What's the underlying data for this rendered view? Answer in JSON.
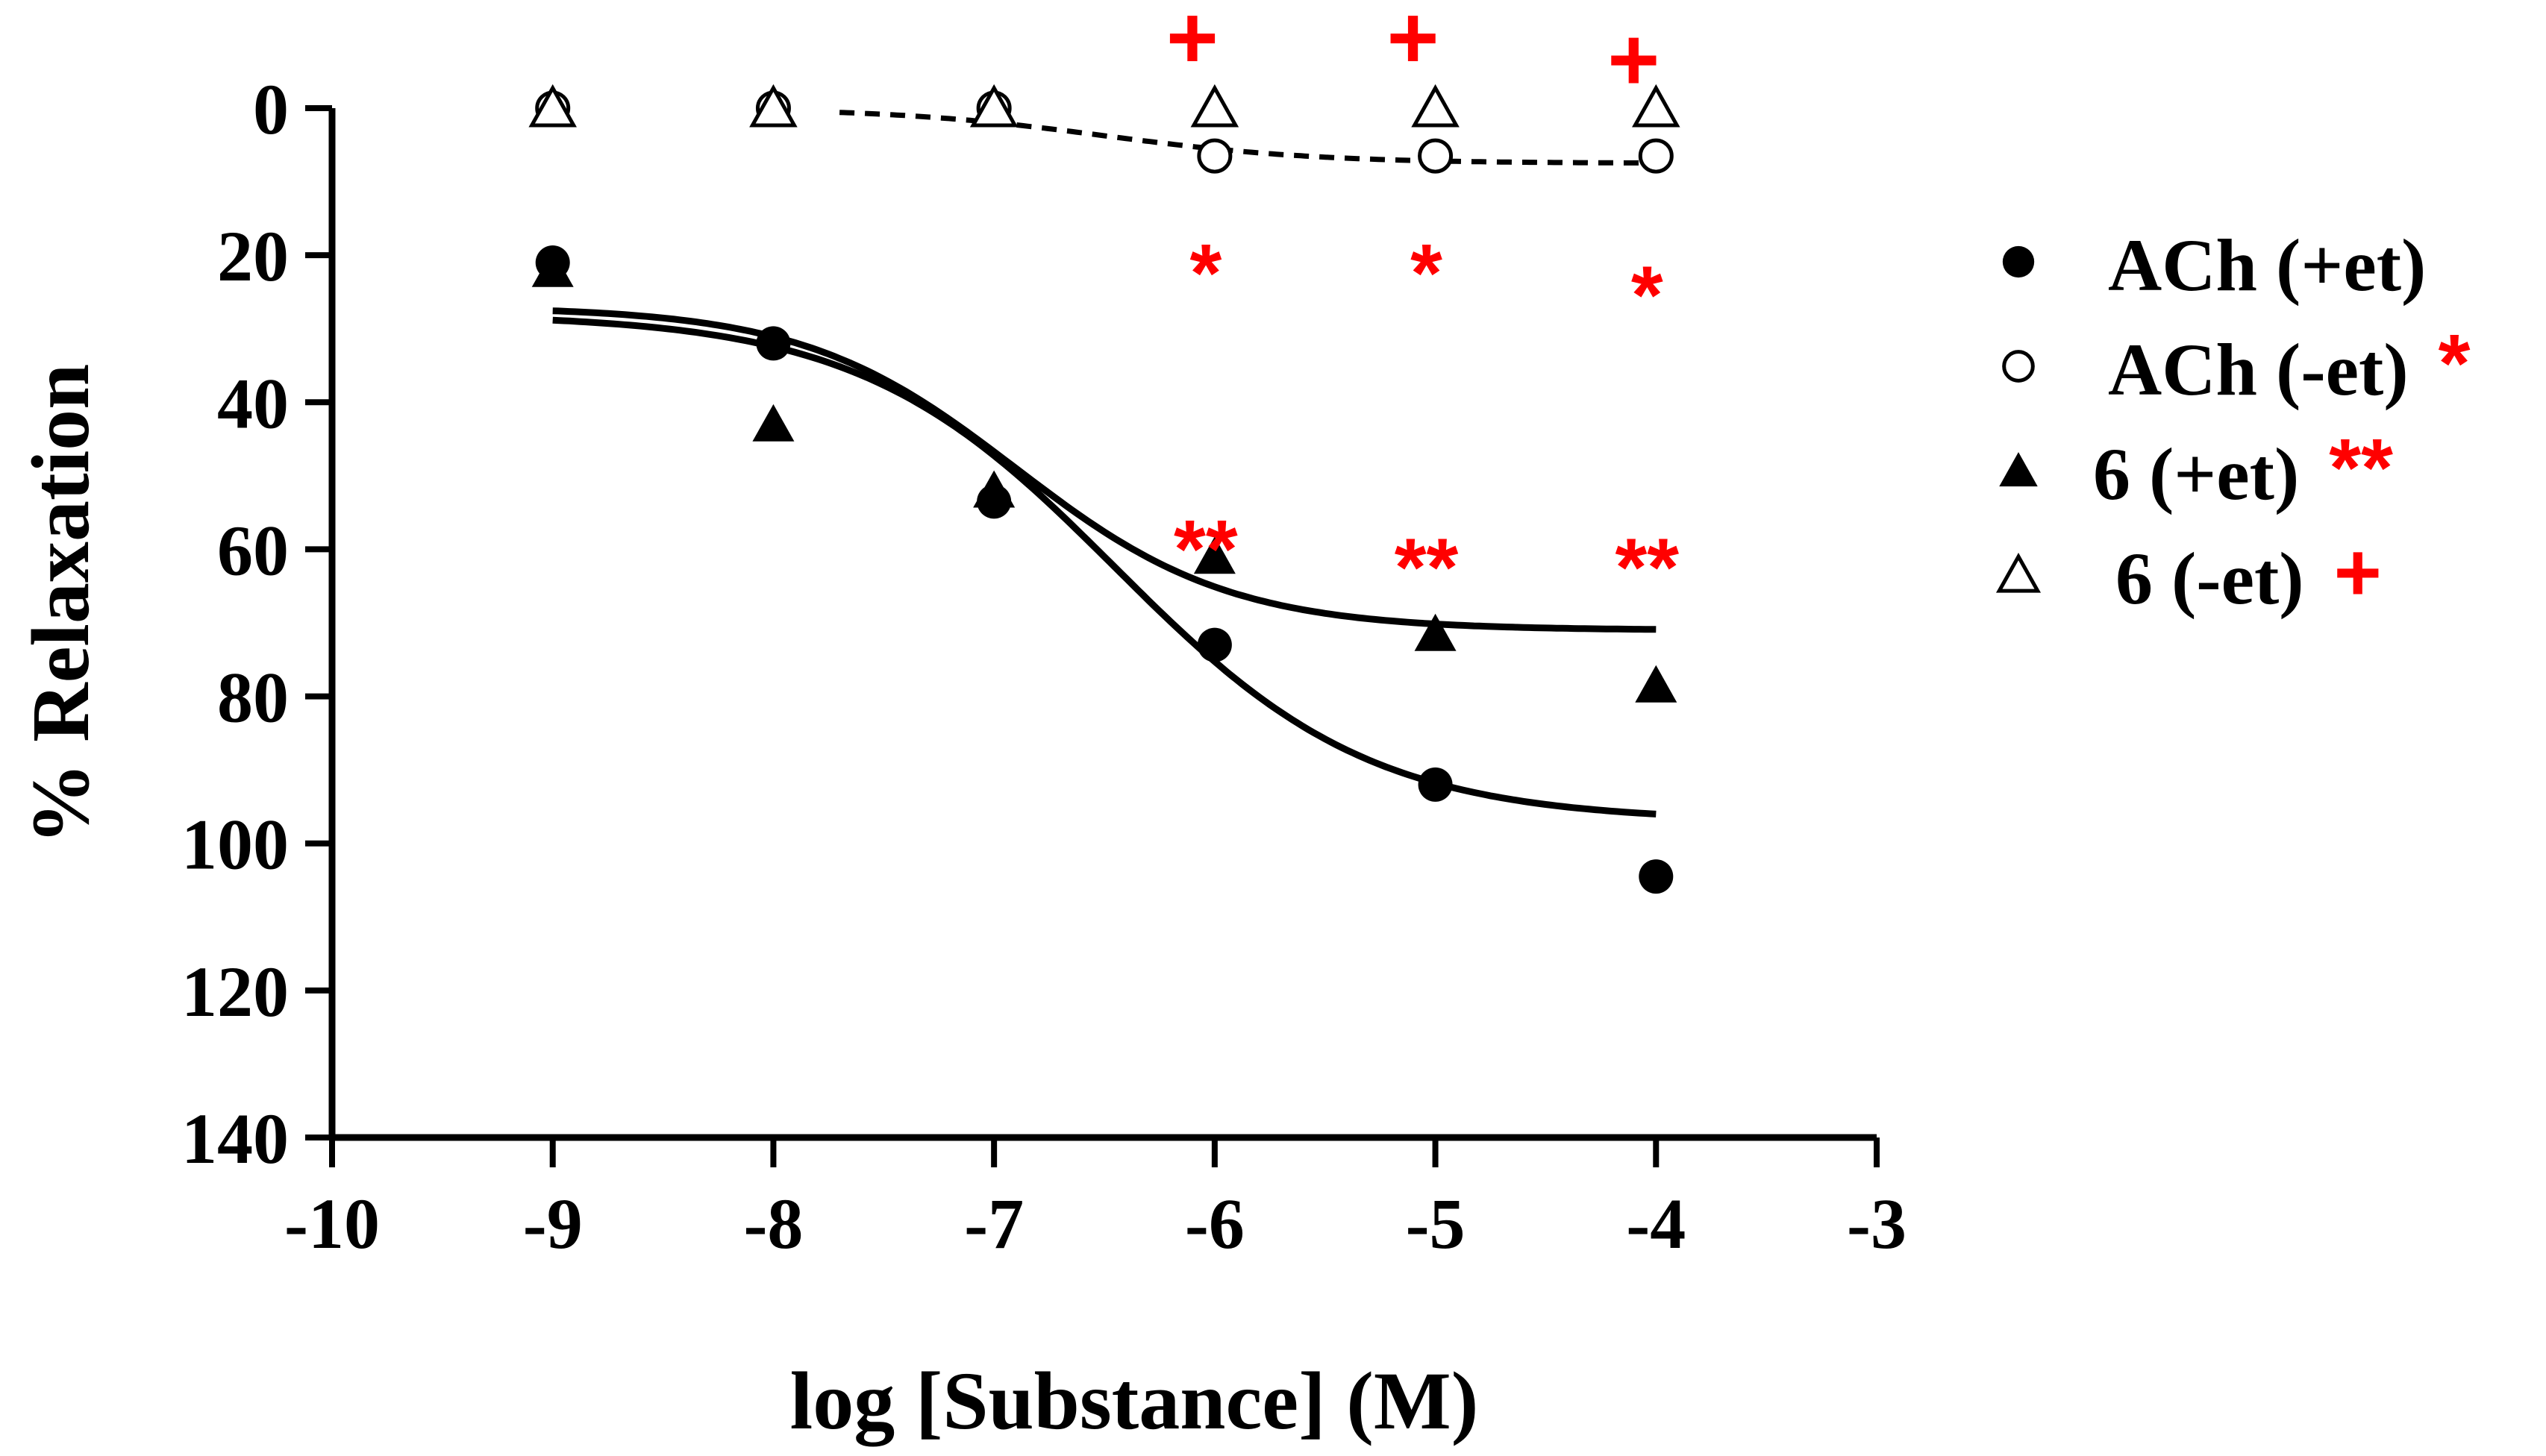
{
  "chart_data": {
    "type": "scatter",
    "xlabel": "log [Substance] (M)",
    "ylabel": "% Relaxation",
    "xlim": [
      -10,
      -3
    ],
    "ylim": [
      140,
      0
    ],
    "y_inverted": true,
    "xticks": [
      "-10",
      "-9",
      "-8",
      "-7",
      "-6",
      "-5",
      "-4",
      "-3"
    ],
    "yticks": [
      "0",
      "20",
      "40",
      "60",
      "80",
      "100",
      "120",
      "140"
    ],
    "grid": false,
    "legend_position": "right",
    "series": [
      {
        "name": "ACh (+et)",
        "marker": "filled-circle",
        "x": [
          -9,
          -8,
          -7,
          -6,
          -5,
          -4
        ],
        "y": [
          21,
          32,
          53.5,
          73,
          92,
          104.5
        ],
        "fit": "solid",
        "fit_params": {
          "bottom": 28,
          "top": 97,
          "logEC50": -6.45,
          "hill": 0.75
        }
      },
      {
        "name": "ACh (-et)",
        "marker": "open-circle",
        "legend_sig": "*",
        "x": [
          -9,
          -8,
          -7,
          -6,
          -5,
          -4
        ],
        "y": [
          0,
          0,
          0,
          6.5,
          6.5,
          6.5
        ],
        "fit": "dashed",
        "fit_params": {
          "bottom": 0,
          "top": 7.5,
          "logEC50": -6.5,
          "hill": 0.9
        },
        "fit_xrange": [
          -7.7,
          -4
        ]
      },
      {
        "name": "6 (+et)",
        "marker": "filled-triangle",
        "legend_sig": "**",
        "x": [
          -9,
          -8,
          -7,
          -6,
          -5,
          -4
        ],
        "y": [
          22,
          43,
          52,
          61,
          71.5,
          78.5
        ],
        "fit": "solid",
        "fit_params": {
          "bottom": 27,
          "top": 71,
          "logEC50": -6.9,
          "hill": 0.9
        }
      },
      {
        "name": "6 (-et)",
        "marker": "open-triangle",
        "legend_sig": "+",
        "x": [
          -9,
          -8,
          -7,
          -6,
          -5,
          -4
        ],
        "y": [
          0,
          0,
          0,
          0,
          0,
          0
        ]
      }
    ],
    "annotations": [
      {
        "text": "+",
        "x": -6,
        "y": -9.5,
        "size": "large"
      },
      {
        "text": "+",
        "x": -5,
        "y": -9.5,
        "size": "large"
      },
      {
        "text": "+",
        "x": -4,
        "y": -6.5,
        "size": "large"
      },
      {
        "text": "*",
        "x": -6,
        "y": 20,
        "size": "medium"
      },
      {
        "text": "*",
        "x": -5,
        "y": 20,
        "size": "medium"
      },
      {
        "text": "*",
        "x": -4,
        "y": 23,
        "size": "medium"
      },
      {
        "text": "**",
        "x": -6,
        "y": 57.5,
        "size": "medium"
      },
      {
        "text": "**",
        "x": -5,
        "y": 60,
        "size": "medium"
      },
      {
        "text": "**",
        "x": -4,
        "y": 60,
        "size": "medium"
      }
    ],
    "colors": {
      "data": "#000000",
      "significance": "#ff0000"
    }
  }
}
